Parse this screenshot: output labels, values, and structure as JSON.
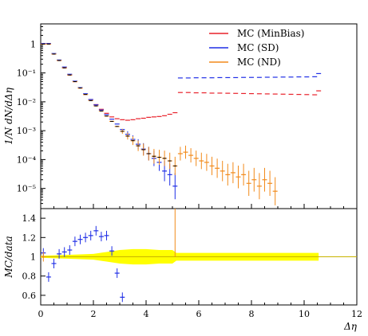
{
  "chart_data": {
    "type": "scatter",
    "title": "",
    "main": {
      "ylabel": "1/N dN/dΔη",
      "yscale": "log",
      "ylim": [
        2e-06,
        5
      ],
      "ytick_labels": [
        "1",
        "10⁻¹",
        "10⁻²",
        "10⁻³",
        "10⁻⁴",
        "10⁻⁵"
      ],
      "ytick_values": [
        1,
        0.1,
        0.01,
        0.001,
        0.0001,
        1e-05
      ]
    },
    "ratio": {
      "ylabel": "MC/data",
      "ylim": [
        0.5,
        1.5
      ],
      "ytick_labels": [
        "0.6",
        "0.8",
        "1",
        "1.2",
        "1.4"
      ],
      "ytick_values": [
        0.6,
        0.8,
        1.0,
        1.2,
        1.4
      ],
      "band_color": "#ffff00"
    },
    "xlabel": "Δη",
    "xlim": [
      0,
      12
    ],
    "xtick_labels": [
      "0",
      "2",
      "4",
      "6",
      "8",
      "10",
      "12"
    ],
    "xtick_values": [
      0,
      2,
      4,
      6,
      8,
      10,
      12
    ],
    "legend_position": "top-right",
    "series": [
      {
        "name": "MC (MinBias)",
        "color": "#e8202a",
        "points": [
          {
            "x": 0.1,
            "y": 1.0
          },
          {
            "x": 0.3,
            "y": 1.0
          },
          {
            "x": 0.5,
            "y": 0.45
          },
          {
            "x": 0.7,
            "y": 0.27
          },
          {
            "x": 0.9,
            "y": 0.15
          },
          {
            "x": 1.1,
            "y": 0.085
          },
          {
            "x": 1.3,
            "y": 0.05
          },
          {
            "x": 1.5,
            "y": 0.03
          },
          {
            "x": 1.7,
            "y": 0.018
          },
          {
            "x": 1.9,
            "y": 0.012
          },
          {
            "x": 2.1,
            "y": 0.008
          },
          {
            "x": 2.3,
            "y": 0.0055
          },
          {
            "x": 2.5,
            "y": 0.004
          },
          {
            "x": 2.7,
            "y": 0.003
          },
          {
            "x": 2.9,
            "y": 0.0026
          },
          {
            "x": 3.1,
            "y": 0.0024
          },
          {
            "x": 3.3,
            "y": 0.0023
          },
          {
            "x": 3.5,
            "y": 0.0024
          },
          {
            "x": 3.7,
            "y": 0.0026
          },
          {
            "x": 3.9,
            "y": 0.0027
          },
          {
            "x": 4.1,
            "y": 0.0029
          },
          {
            "x": 4.3,
            "y": 0.003
          },
          {
            "x": 4.5,
            "y": 0.0031
          },
          {
            "x": 4.7,
            "y": 0.0033
          },
          {
            "x": 4.9,
            "y": 0.0037
          },
          {
            "x": 5.1,
            "y": 0.0042
          },
          {
            "x": 5.3,
            "y": 0.021
          },
          {
            "x": 5.6,
            "y": 0.021
          },
          {
            "x": 5.9,
            "y": 0.0205
          },
          {
            "x": 6.2,
            "y": 0.0205
          },
          {
            "x": 6.5,
            "y": 0.02
          },
          {
            "x": 6.8,
            "y": 0.02
          },
          {
            "x": 7.1,
            "y": 0.0198
          },
          {
            "x": 7.4,
            "y": 0.0196
          },
          {
            "x": 7.7,
            "y": 0.0194
          },
          {
            "x": 8.0,
            "y": 0.0192
          },
          {
            "x": 8.3,
            "y": 0.019
          },
          {
            "x": 8.6,
            "y": 0.0188
          },
          {
            "x": 8.9,
            "y": 0.0186
          },
          {
            "x": 9.2,
            "y": 0.0184
          },
          {
            "x": 9.5,
            "y": 0.0182
          },
          {
            "x": 9.8,
            "y": 0.018
          },
          {
            "x": 10.1,
            "y": 0.0178
          },
          {
            "x": 10.4,
            "y": 0.0175
          },
          {
            "x": 10.55,
            "y": 0.024
          }
        ]
      },
      {
        "name": "MC (SD)",
        "color": "#1f2ee6",
        "points": [
          {
            "x": 0.1,
            "y": 1.05
          },
          {
            "x": 0.3,
            "y": 1.05
          },
          {
            "x": 0.5,
            "y": 0.47
          },
          {
            "x": 0.7,
            "y": 0.28
          },
          {
            "x": 0.9,
            "y": 0.16
          },
          {
            "x": 1.1,
            "y": 0.09
          },
          {
            "x": 1.3,
            "y": 0.052
          },
          {
            "x": 1.5,
            "y": 0.031
          },
          {
            "x": 1.7,
            "y": 0.019
          },
          {
            "x": 1.9,
            "y": 0.012
          },
          {
            "x": 2.1,
            "y": 0.0078
          },
          {
            "x": 2.3,
            "y": 0.0052
          },
          {
            "x": 2.5,
            "y": 0.0036
          },
          {
            "x": 2.7,
            "y": 0.0025
          },
          {
            "x": 2.9,
            "y": 0.0017
          },
          {
            "x": 3.1,
            "y": 0.0011
          },
          {
            "x": 3.3,
            "y": 0.00075
          },
          {
            "x": 3.5,
            "y": 0.0005
          },
          {
            "x": 3.7,
            "y": 0.00034
          },
          {
            "x": 3.9,
            "y": 0.00023
          },
          {
            "x": 4.1,
            "y": 0.00016
          },
          {
            "x": 4.3,
            "y": 0.00011
          },
          {
            "x": 4.5,
            "y": 8e-05
          },
          {
            "x": 4.7,
            "y": 4e-05
          },
          {
            "x": 4.9,
            "y": 3e-05
          },
          {
            "x": 5.1,
            "y": 1.2e-05
          },
          {
            "x": 5.3,
            "y": 0.067
          },
          {
            "x": 5.6,
            "y": 0.067
          },
          {
            "x": 5.9,
            "y": 0.068
          },
          {
            "x": 6.2,
            "y": 0.068
          },
          {
            "x": 6.5,
            "y": 0.068
          },
          {
            "x": 6.8,
            "y": 0.069
          },
          {
            "x": 7.1,
            "y": 0.069
          },
          {
            "x": 7.4,
            "y": 0.069
          },
          {
            "x": 7.7,
            "y": 0.07
          },
          {
            "x": 8.0,
            "y": 0.07
          },
          {
            "x": 8.3,
            "y": 0.07
          },
          {
            "x": 8.6,
            "y": 0.071
          },
          {
            "x": 8.9,
            "y": 0.071
          },
          {
            "x": 9.2,
            "y": 0.072
          },
          {
            "x": 9.5,
            "y": 0.072
          },
          {
            "x": 9.8,
            "y": 0.073
          },
          {
            "x": 10.1,
            "y": 0.073
          },
          {
            "x": 10.4,
            "y": 0.074
          },
          {
            "x": 10.55,
            "y": 0.095
          }
        ]
      },
      {
        "name": "MC (ND)",
        "color": "#f28a1a",
        "points": [
          {
            "x": 0.1,
            "y": 1.0
          },
          {
            "x": 0.3,
            "y": 1.0
          },
          {
            "x": 0.5,
            "y": 0.45
          },
          {
            "x": 0.7,
            "y": 0.27
          },
          {
            "x": 0.9,
            "y": 0.15
          },
          {
            "x": 1.1,
            "y": 0.085
          },
          {
            "x": 1.3,
            "y": 0.05
          },
          {
            "x": 1.5,
            "y": 0.03
          },
          {
            "x": 1.7,
            "y": 0.018
          },
          {
            "x": 1.9,
            "y": 0.011
          },
          {
            "x": 2.1,
            "y": 0.0072
          },
          {
            "x": 2.3,
            "y": 0.0048
          },
          {
            "x": 2.5,
            "y": 0.0032
          },
          {
            "x": 2.7,
            "y": 0.0021
          },
          {
            "x": 2.9,
            "y": 0.0014
          },
          {
            "x": 3.1,
            "y": 0.00095
          },
          {
            "x": 3.3,
            "y": 0.00065
          },
          {
            "x": 3.5,
            "y": 0.00045
          },
          {
            "x": 3.7,
            "y": 0.0003
          },
          {
            "x": 3.9,
            "y": 0.00022
          },
          {
            "x": 4.1,
            "y": 0.00016
          },
          {
            "x": 4.3,
            "y": 0.00013
          },
          {
            "x": 4.5,
            "y": 0.00012
          },
          {
            "x": 4.7,
            "y": 0.00011
          },
          {
            "x": 4.9,
            "y": 9e-05
          },
          {
            "x": 5.1,
            "y": 6e-05
          },
          {
            "x": 5.3,
            "y": 0.00016
          },
          {
            "x": 5.5,
            "y": 0.00018
          },
          {
            "x": 5.7,
            "y": 0.00014
          },
          {
            "x": 5.9,
            "y": 0.00011
          },
          {
            "x": 6.1,
            "y": 9e-05
          },
          {
            "x": 6.3,
            "y": 8e-05
          },
          {
            "x": 6.5,
            "y": 6e-05
          },
          {
            "x": 6.7,
            "y": 5e-05
          },
          {
            "x": 6.9,
            "y": 4e-05
          },
          {
            "x": 7.1,
            "y": 3e-05
          },
          {
            "x": 7.3,
            "y": 3.5e-05
          },
          {
            "x": 7.5,
            "y": 2.5e-05
          },
          {
            "x": 7.7,
            "y": 3e-05
          },
          {
            "x": 7.9,
            "y": 1.5e-05
          },
          {
            "x": 8.1,
            "y": 2e-05
          },
          {
            "x": 8.3,
            "y": 1.2e-05
          },
          {
            "x": 8.5,
            "y": 2e-05
          },
          {
            "x": 8.7,
            "y": 1.5e-05
          },
          {
            "x": 8.9,
            "y": 8e-06
          }
        ]
      }
    ],
    "data_points": [
      {
        "x": 0.1,
        "y": 1.0
      },
      {
        "x": 0.3,
        "y": 1.0
      },
      {
        "x": 0.5,
        "y": 0.45
      },
      {
        "x": 0.7,
        "y": 0.27
      },
      {
        "x": 0.9,
        "y": 0.15
      },
      {
        "x": 1.1,
        "y": 0.085
      },
      {
        "x": 1.3,
        "y": 0.05
      },
      {
        "x": 1.5,
        "y": 0.03
      },
      {
        "x": 1.7,
        "y": 0.018
      },
      {
        "x": 1.9,
        "y": 0.011
      },
      {
        "x": 2.1,
        "y": 0.0072
      },
      {
        "x": 2.3,
        "y": 0.0048
      },
      {
        "x": 2.5,
        "y": 0.0032
      },
      {
        "x": 2.7,
        "y": 0.0021
      },
      {
        "x": 2.9,
        "y": 0.0014
      },
      {
        "x": 3.1,
        "y": 0.00095
      },
      {
        "x": 3.3,
        "y": 0.00065
      },
      {
        "x": 3.5,
        "y": 0.00045
      },
      {
        "x": 3.7,
        "y": 0.0003
      },
      {
        "x": 3.9,
        "y": 0.00022
      },
      {
        "x": 4.1,
        "y": 0.00016
      },
      {
        "x": 4.3,
        "y": 0.00013
      },
      {
        "x": 4.5,
        "y": 0.00012
      },
      {
        "x": 4.7,
        "y": 0.00011
      },
      {
        "x": 4.9,
        "y": 9e-05
      },
      {
        "x": 5.1,
        "y": 6e-05
      }
    ],
    "ratio_series": [
      {
        "name": "MC (SD)",
        "color": "#1f2ee6",
        "points": [
          {
            "x": 0.1,
            "y": 1.04
          },
          {
            "x": 0.3,
            "y": 0.79
          },
          {
            "x": 0.5,
            "y": 0.93
          },
          {
            "x": 0.7,
            "y": 1.03
          },
          {
            "x": 0.9,
            "y": 1.05
          },
          {
            "x": 1.1,
            "y": 1.07
          },
          {
            "x": 1.3,
            "y": 1.16
          },
          {
            "x": 1.5,
            "y": 1.18
          },
          {
            "x": 1.7,
            "y": 1.2
          },
          {
            "x": 1.9,
            "y": 1.22
          },
          {
            "x": 2.1,
            "y": 1.27
          },
          {
            "x": 2.3,
            "y": 1.21
          },
          {
            "x": 2.5,
            "y": 1.22
          },
          {
            "x": 2.7,
            "y": 1.06
          },
          {
            "x": 2.9,
            "y": 0.83
          },
          {
            "x": 3.1,
            "y": 0.58
          }
        ]
      },
      {
        "name": "MC (ND)",
        "color": "#f28a1a",
        "points": [
          {
            "x": 0.1,
            "y": 1.0
          },
          {
            "x": 5.1,
            "y": 1.5
          }
        ]
      }
    ],
    "ratio_band_halfwidth": [
      {
        "x": 0.0,
        "h": 0.01
      },
      {
        "x": 1.0,
        "h": 0.02
      },
      {
        "x": 2.0,
        "h": 0.03
      },
      {
        "x": 2.5,
        "h": 0.05
      },
      {
        "x": 3.0,
        "h": 0.07
      },
      {
        "x": 3.5,
        "h": 0.08
      },
      {
        "x": 4.0,
        "h": 0.08
      },
      {
        "x": 4.5,
        "h": 0.07
      },
      {
        "x": 5.0,
        "h": 0.07
      },
      {
        "x": 5.15,
        "h": 0.04
      },
      {
        "x": 6.0,
        "h": 0.04
      },
      {
        "x": 8.0,
        "h": 0.04
      },
      {
        "x": 10.55,
        "h": 0.04
      }
    ]
  }
}
